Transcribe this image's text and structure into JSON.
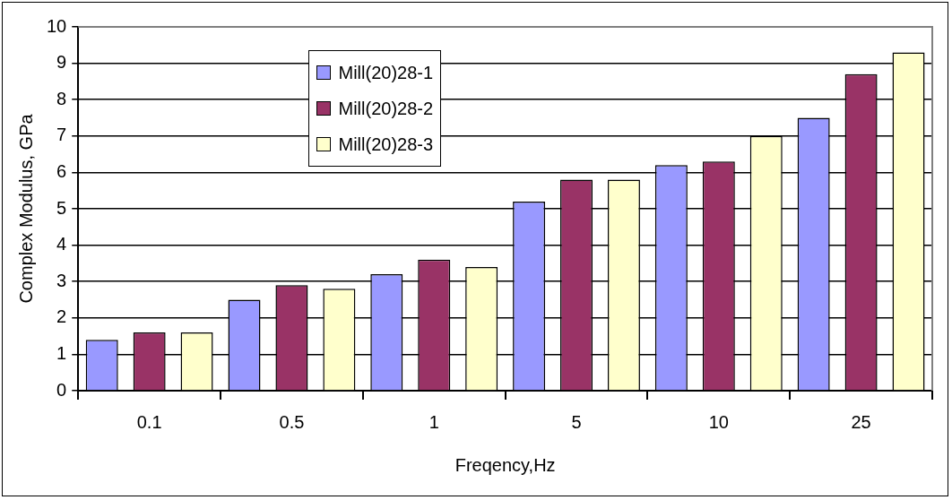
{
  "chart_data": {
    "type": "bar",
    "categories": [
      "0.1",
      "0.5",
      "1",
      "5",
      "10",
      "25"
    ],
    "series": [
      {
        "name": "Mill(20)28-1",
        "color": "#9999ff",
        "values": [
          1.4,
          2.5,
          3.2,
          5.2,
          6.2,
          7.5
        ]
      },
      {
        "name": "Mill(20)28-2",
        "color": "#993366",
        "values": [
          1.6,
          2.9,
          3.6,
          5.8,
          6.3,
          8.7
        ]
      },
      {
        "name": "Mill(20)28-3",
        "color": "#ffffcc",
        "values": [
          1.6,
          2.8,
          3.4,
          5.8,
          7.0,
          9.3
        ]
      }
    ],
    "xlabel": "Freqency,Hz",
    "ylabel": "Complex Modulus, GPa",
    "ylim": [
      0,
      10
    ],
    "yticks": [
      0,
      1,
      2,
      3,
      4,
      5,
      6,
      7,
      8,
      9,
      10
    ],
    "grid": "y",
    "legend": "top"
  }
}
